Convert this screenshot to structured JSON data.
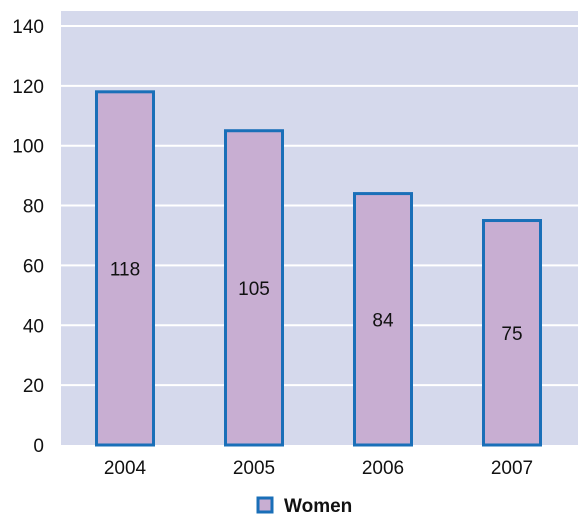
{
  "chart_data": {
    "type": "bar",
    "categories": [
      "2004",
      "2005",
      "2006",
      "2007"
    ],
    "series": [
      {
        "name": "Women",
        "values": [
          118,
          105,
          84,
          75
        ]
      }
    ],
    "data_labels": [
      "118",
      "105",
      "84",
      "75"
    ],
    "ylim": [
      0,
      145
    ],
    "yticks": [
      "0",
      "20",
      "40",
      "60",
      "80",
      "100",
      "120",
      "140"
    ],
    "grid": true,
    "legend_position": "bottom-center",
    "colors": {
      "plot_background": "#d5d9ec",
      "gridline": "#ffffff",
      "bar_fill": "#c8aed2",
      "bar_stroke": "#1a6fb8",
      "legend_marker_fill": "#c8aed2",
      "legend_marker_stroke": "#1a6fb8"
    }
  }
}
